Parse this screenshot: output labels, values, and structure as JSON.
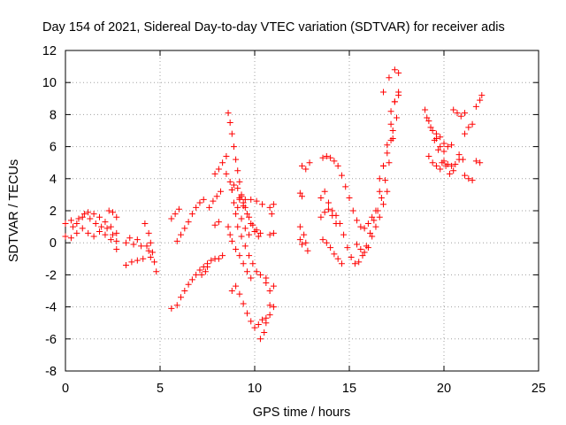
{
  "chart_data": {
    "type": "scatter",
    "title": "Day 154 of 2021, Sidereal Day-to-day VTEC variation (SDTVAR) for receiver adis",
    "xlabel": "GPS time / hours",
    "ylabel": "SDTVAR / TECUs",
    "xlim": [
      0,
      25
    ],
    "ylim": [
      -8,
      12
    ],
    "xticks": [
      0,
      5,
      10,
      15,
      20,
      25
    ],
    "yticks": [
      -8,
      -6,
      -4,
      -2,
      0,
      2,
      4,
      6,
      8,
      10,
      12
    ],
    "grid": true,
    "marker": "+",
    "color": "#ff0000",
    "tracks": [
      [
        [
          0.0,
          1.2
        ],
        [
          0.3,
          1.4
        ],
        [
          0.6,
          1.2
        ],
        [
          0.9,
          1.6
        ],
        [
          1.2,
          1.9
        ],
        [
          1.5,
          1.8
        ],
        [
          1.8,
          1.6
        ],
        [
          2.1,
          1.3
        ],
        [
          2.4,
          1.0
        ],
        [
          2.7,
          0.6
        ]
      ],
      [
        [
          0.0,
          0.4
        ],
        [
          0.3,
          0.3
        ],
        [
          0.6,
          0.6
        ],
        [
          0.9,
          0.9
        ],
        [
          1.2,
          0.6
        ],
        [
          1.5,
          0.4
        ],
        [
          1.8,
          0.7
        ],
        [
          2.1,
          0.5
        ],
        [
          2.4,
          0.2
        ],
        [
          2.7,
          -0.4
        ]
      ],
      [
        [
          0.4,
          1.0
        ],
        [
          0.7,
          1.5
        ],
        [
          1.0,
          1.8
        ],
        [
          1.3,
          1.5
        ],
        [
          1.6,
          1.2
        ],
        [
          1.9,
          1.0
        ],
        [
          2.2,
          0.9
        ],
        [
          2.5,
          0.5
        ],
        [
          2.7,
          0.1
        ]
      ],
      [
        [
          2.3,
          2.0
        ],
        [
          2.5,
          1.9
        ],
        [
          2.7,
          1.6
        ]
      ],
      [
        [
          3.2,
          0.0
        ],
        [
          3.4,
          0.3
        ],
        [
          3.6,
          -0.1
        ],
        [
          3.8,
          0.2
        ],
        [
          4.0,
          -0.2
        ]
      ],
      [
        [
          3.2,
          -1.4
        ],
        [
          3.5,
          -1.2
        ],
        [
          3.8,
          -1.1
        ],
        [
          4.1,
          -1.0
        ]
      ],
      [
        [
          4.2,
          1.2
        ],
        [
          4.4,
          0.6
        ],
        [
          4.5,
          0.0
        ],
        [
          4.6,
          -0.6
        ],
        [
          4.7,
          -1.2
        ],
        [
          4.8,
          -1.8
        ]
      ],
      [
        [
          4.3,
          -0.2
        ],
        [
          4.4,
          -0.5
        ],
        [
          4.5,
          -0.9
        ]
      ],
      [
        [
          5.6,
          -4.1
        ],
        [
          5.9,
          -3.9
        ],
        [
          6.1,
          -3.4
        ],
        [
          6.3,
          -3.0
        ],
        [
          6.5,
          -2.6
        ],
        [
          6.7,
          -2.3
        ],
        [
          6.9,
          -2.0
        ],
        [
          7.1,
          -1.7
        ],
        [
          7.3,
          -1.5
        ],
        [
          7.5,
          -1.3
        ],
        [
          7.7,
          -1.1
        ],
        [
          7.9,
          -1.0
        ],
        [
          8.1,
          -1.0
        ],
        [
          8.3,
          -0.8
        ]
      ],
      [
        [
          5.9,
          0.1
        ],
        [
          6.1,
          0.5
        ],
        [
          6.3,
          0.9
        ],
        [
          6.5,
          1.3
        ],
        [
          6.7,
          1.8
        ],
        [
          6.9,
          2.2
        ],
        [
          7.1,
          2.5
        ],
        [
          7.3,
          2.7
        ]
      ],
      [
        [
          5.6,
          1.5
        ],
        [
          5.8,
          1.8
        ],
        [
          6.0,
          2.1
        ]
      ],
      [
        [
          7.2,
          -2.0
        ],
        [
          7.4,
          -1.8
        ],
        [
          7.5,
          -1.5
        ]
      ],
      [
        [
          7.6,
          2.2
        ],
        [
          7.8,
          2.6
        ],
        [
          8.0,
          2.9
        ],
        [
          8.2,
          3.2
        ]
      ],
      [
        [
          7.9,
          1.1
        ],
        [
          8.1,
          1.3
        ]
      ],
      [
        [
          7.9,
          4.3
        ],
        [
          8.1,
          4.6
        ],
        [
          8.3,
          5.0
        ],
        [
          8.5,
          5.4
        ]
      ],
      [
        [
          8.6,
          8.1
        ],
        [
          8.7,
          7.5
        ],
        [
          8.8,
          6.8
        ],
        [
          8.9,
          6.0
        ],
        [
          9.0,
          5.2
        ],
        [
          9.1,
          4.5
        ],
        [
          9.2,
          3.8
        ],
        [
          9.3,
          3.0
        ],
        [
          9.4,
          2.5
        ]
      ],
      [
        [
          8.8,
          3.3
        ],
        [
          8.9,
          2.5
        ],
        [
          9.0,
          1.8
        ],
        [
          9.1,
          1.0
        ],
        [
          9.3,
          0.4
        ],
        [
          9.5,
          -0.2
        ],
        [
          9.7,
          -0.8
        ],
        [
          9.9,
          -1.3
        ],
        [
          10.1,
          -1.8
        ],
        [
          10.3,
          -2.0
        ],
        [
          10.6,
          -2.2
        ]
      ],
      [
        [
          8.8,
          -3.0
        ],
        [
          9.0,
          -2.7
        ],
        [
          9.2,
          -3.2
        ],
        [
          9.4,
          -3.8
        ],
        [
          9.6,
          -4.4
        ],
        [
          9.8,
          -4.9
        ],
        [
          10.0,
          -5.3
        ],
        [
          10.2,
          -5.1
        ],
        [
          10.4,
          -4.8
        ],
        [
          10.6,
          -4.7
        ],
        [
          10.8,
          -4.5
        ]
      ],
      [
        [
          8.6,
          1.0
        ],
        [
          8.7,
          0.5
        ],
        [
          8.8,
          0.1
        ],
        [
          9.0,
          -0.4
        ],
        [
          9.2,
          -0.8
        ],
        [
          9.4,
          -1.3
        ],
        [
          9.6,
          -1.8
        ],
        [
          9.8,
          -2.2
        ]
      ],
      [
        [
          8.9,
          3.6
        ],
        [
          9.1,
          3.4
        ],
        [
          9.3,
          2.9
        ],
        [
          9.5,
          2.2
        ],
        [
          9.7,
          1.6
        ],
        [
          9.9,
          1.1
        ],
        [
          10.1,
          0.8
        ],
        [
          10.3,
          0.6
        ]
      ],
      [
        [
          9.2,
          2.8
        ],
        [
          9.4,
          2.3
        ],
        [
          9.6,
          1.8
        ],
        [
          9.8,
          1.2
        ],
        [
          10.0,
          0.7
        ],
        [
          10.2,
          0.4
        ]
      ],
      [
        [
          9.1,
          2.2
        ],
        [
          9.3,
          1.5
        ],
        [
          9.5,
          0.9
        ],
        [
          9.7,
          0.5
        ]
      ],
      [
        [
          9.2,
          2.7
        ],
        [
          9.5,
          2.7
        ],
        [
          9.8,
          2.7
        ],
        [
          10.1,
          2.6
        ],
        [
          10.4,
          2.4
        ]
      ],
      [
        [
          8.5,
          4.3
        ],
        [
          8.7,
          3.8
        ],
        [
          8.8,
          3.3
        ]
      ],
      [
        [
          10.3,
          -6.0
        ],
        [
          10.5,
          -5.6
        ],
        [
          10.6,
          -5.0
        ]
      ],
      [
        [
          10.6,
          -2.5
        ],
        [
          10.8,
          -3.0
        ],
        [
          11.0,
          -2.7
        ]
      ],
      [
        [
          10.8,
          0.5
        ],
        [
          11.0,
          0.6
        ]
      ],
      [
        [
          10.8,
          2.2
        ],
        [
          10.9,
          1.8
        ],
        [
          11.0,
          2.4
        ]
      ],
      [
        [
          10.8,
          -3.9
        ],
        [
          11.0,
          -4.0
        ]
      ],
      [
        [
          12.4,
          3.1
        ],
        [
          12.5,
          2.9
        ]
      ],
      [
        [
          12.5,
          4.8
        ],
        [
          12.7,
          4.6
        ],
        [
          12.9,
          5.0
        ]
      ],
      [
        [
          12.4,
          1.0
        ],
        [
          12.6,
          0.5
        ],
        [
          12.7,
          0.0
        ],
        [
          12.8,
          -0.5
        ]
      ],
      [
        [
          12.4,
          0.2
        ],
        [
          12.5,
          -0.1
        ]
      ],
      [
        [
          13.6,
          5.3
        ],
        [
          13.8,
          5.4
        ],
        [
          14.0,
          5.3
        ],
        [
          14.2,
          5.1
        ],
        [
          14.4,
          4.8
        ],
        [
          14.6,
          4.2
        ],
        [
          14.8,
          3.5
        ],
        [
          15.0,
          2.8
        ],
        [
          15.2,
          2.0
        ],
        [
          15.4,
          1.4
        ],
        [
          15.6,
          1.0
        ],
        [
          15.8,
          0.9
        ],
        [
          16.0,
          1.2
        ],
        [
          16.2,
          1.6
        ],
        [
          16.4,
          2.0
        ],
        [
          16.6,
          3.2
        ],
        [
          16.8,
          4.8
        ],
        [
          17.0,
          6.1
        ],
        [
          17.2,
          7.4
        ],
        [
          17.4,
          8.8
        ],
        [
          17.6,
          10.6
        ]
      ],
      [
        [
          13.5,
          1.6
        ],
        [
          13.7,
          1.9
        ],
        [
          13.9,
          2.1
        ],
        [
          14.1,
          2.0
        ],
        [
          14.3,
          1.7
        ],
        [
          14.5,
          1.2
        ],
        [
          14.7,
          0.5
        ],
        [
          14.9,
          -0.3
        ],
        [
          15.1,
          -0.9
        ],
        [
          15.3,
          -1.3
        ],
        [
          15.5,
          -1.2
        ],
        [
          15.7,
          -0.8
        ],
        [
          15.9,
          -0.2
        ],
        [
          16.1,
          0.6
        ],
        [
          16.3,
          1.4
        ],
        [
          16.5,
          2.0
        ],
        [
          16.7,
          2.8
        ],
        [
          16.9,
          3.9
        ],
        [
          17.1,
          5.0
        ],
        [
          17.3,
          6.5
        ],
        [
          17.5,
          7.8
        ],
        [
          17.6,
          9.2
        ]
      ],
      [
        [
          13.6,
          0.2
        ],
        [
          13.8,
          0.0
        ],
        [
          14.0,
          -0.3
        ],
        [
          14.2,
          -0.7
        ],
        [
          14.4,
          -1.0
        ],
        [
          14.6,
          -1.3
        ]
      ],
      [
        [
          13.5,
          2.8
        ],
        [
          13.7,
          3.2
        ],
        [
          13.9,
          2.5
        ],
        [
          14.1,
          1.7
        ],
        [
          14.3,
          1.2
        ]
      ],
      [
        [
          15.4,
          -0.1
        ],
        [
          15.6,
          -0.4
        ],
        [
          15.8,
          -0.6
        ],
        [
          16.0,
          -0.3
        ],
        [
          16.2,
          0.4
        ],
        [
          16.4,
          1.0
        ],
        [
          16.6,
          1.6
        ],
        [
          16.8,
          2.4
        ],
        [
          17.0,
          3.2
        ]
      ],
      [
        [
          16.6,
          4.0
        ],
        [
          16.8,
          4.8
        ],
        [
          17.0,
          5.6
        ],
        [
          17.2,
          6.4
        ],
        [
          17.3,
          7.0
        ]
      ],
      [
        [
          16.8,
          9.4
        ],
        [
          17.1,
          10.3
        ],
        [
          17.4,
          10.8
        ]
      ],
      [
        [
          17.2,
          8.2
        ],
        [
          17.4,
          8.8
        ],
        [
          17.6,
          9.4
        ]
      ],
      [
        [
          19.0,
          8.3
        ],
        [
          19.2,
          7.6
        ],
        [
          19.4,
          7.0
        ],
        [
          19.6,
          6.5
        ],
        [
          19.8,
          6.0
        ],
        [
          20.0,
          5.7
        ]
      ],
      [
        [
          19.1,
          7.8
        ],
        [
          19.3,
          7.2
        ],
        [
          19.5,
          6.4
        ],
        [
          19.7,
          5.8
        ],
        [
          19.9,
          5.0
        ],
        [
          20.1,
          4.8
        ]
      ],
      [
        [
          19.2,
          5.4
        ],
        [
          19.4,
          5.0
        ],
        [
          19.6,
          4.8
        ],
        [
          19.8,
          4.6
        ]
      ],
      [
        [
          19.6,
          6.8
        ],
        [
          19.8,
          6.6
        ],
        [
          20.0,
          6.2
        ],
        [
          20.2,
          6.0
        ],
        [
          20.4,
          6.1
        ]
      ],
      [
        [
          20.0,
          5.1
        ],
        [
          20.2,
          4.9
        ],
        [
          20.4,
          4.8
        ],
        [
          20.6,
          4.9
        ],
        [
          20.8,
          5.2
        ]
      ],
      [
        [
          20.3,
          4.3
        ],
        [
          20.5,
          4.5
        ]
      ],
      [
        [
          20.5,
          8.3
        ],
        [
          20.7,
          8.1
        ],
        [
          20.9,
          7.9
        ],
        [
          21.1,
          8.1
        ]
      ],
      [
        [
          20.8,
          5.5
        ],
        [
          21.0,
          5.2
        ]
      ],
      [
        [
          21.1,
          4.2
        ],
        [
          21.3,
          4.0
        ],
        [
          21.5,
          3.9
        ]
      ],
      [
        [
          21.1,
          6.8
        ],
        [
          21.3,
          7.2
        ],
        [
          21.5,
          7.4
        ]
      ],
      [
        [
          21.7,
          8.5
        ],
        [
          21.9,
          8.9
        ],
        [
          22.0,
          9.2
        ]
      ],
      [
        [
          21.7,
          5.1
        ],
        [
          21.9,
          5.0
        ]
      ]
    ]
  }
}
